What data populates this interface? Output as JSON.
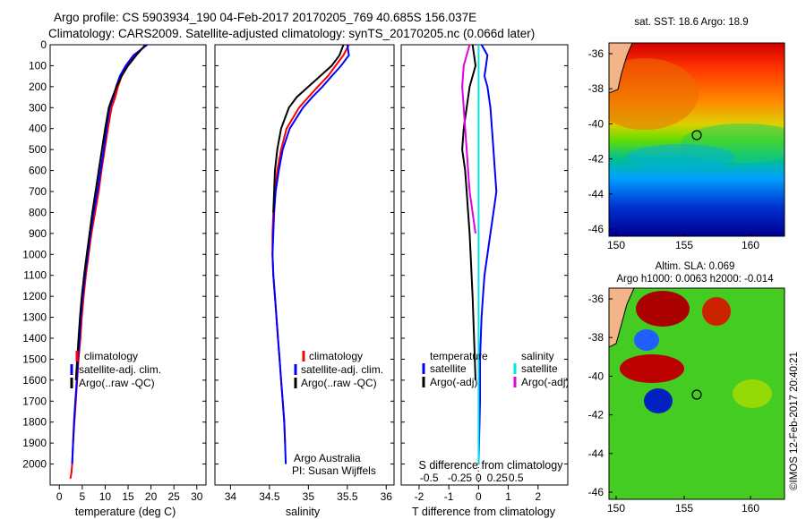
{
  "header": {
    "line1": "Argo profile: CS 5903934_190 04-Feb-2017 20170205_769 40.685S 156.037E",
    "line2": "Climatology: CARS2009. Satellite-adjusted climatology: synTS_20170205.nc (0.066d later)"
  },
  "colors": {
    "climatology": "#ff0000",
    "satellite": "#0000ff",
    "argo": "#000000",
    "sal_satellite": "#00e5e5",
    "sal_argo": "#e000e0"
  },
  "chart_data": [
    {
      "type": "line",
      "id": "temperature",
      "xlabel": "temperature (deg C)",
      "ylabel": "",
      "xlim": [
        -2,
        32
      ],
      "ylim": [
        2100,
        0
      ],
      "xticks": [
        0,
        5,
        10,
        15,
        20,
        25,
        30
      ],
      "yticks": [
        0,
        100,
        200,
        300,
        400,
        500,
        600,
        700,
        800,
        900,
        1000,
        1100,
        1200,
        1300,
        1400,
        1500,
        1600,
        1700,
        1800,
        1900,
        2000
      ],
      "legend": [
        "climatology",
        "satellite-adj. clim.",
        "Argo(..raw -QC)"
      ],
      "legend_position": "lower-right",
      "series": [
        {
          "name": "climatology",
          "color_key": "climatology",
          "x": [
            19.0,
            16.5,
            14.6,
            13.6,
            12.8,
            12.2,
            11.4,
            10.6,
            9.9,
            9.2,
            8.6,
            7.8,
            7.0,
            6.4,
            5.8,
            5.3,
            4.9,
            4.6,
            4.2,
            3.9,
            3.6,
            3.3,
            3.0,
            2.8,
            2.6,
            2.4
          ],
          "y": [
            0,
            50,
            100,
            150,
            200,
            250,
            300,
            400,
            500,
            600,
            700,
            800,
            900,
            1000,
            1100,
            1200,
            1300,
            1400,
            1500,
            1600,
            1700,
            1800,
            1900,
            2000,
            2050,
            2070
          ]
        },
        {
          "name": "satellite-adj. clim.",
          "color_key": "satellite",
          "x": [
            19.2,
            16.2,
            14.5,
            13.2,
            12.4,
            11.8,
            11.0,
            10.3,
            9.7,
            9.0,
            8.3,
            7.5,
            6.8,
            6.2,
            5.6,
            5.1,
            4.7,
            4.4,
            4.1,
            3.8,
            3.5,
            3.2,
            3.0,
            2.8
          ],
          "y": [
            0,
            50,
            100,
            150,
            200,
            250,
            300,
            400,
            500,
            600,
            700,
            800,
            900,
            1000,
            1100,
            1200,
            1300,
            1400,
            1500,
            1600,
            1700,
            1800,
            1900,
            2000
          ]
        },
        {
          "name": "Argo(..raw -QC)",
          "color_key": "argo",
          "x": [
            18.8,
            16.8,
            15.0,
            13.6,
            12.5,
            11.6,
            10.8,
            10.0,
            9.3,
            8.6,
            7.9,
            7.2,
            6.6,
            6.0,
            5.4,
            4.9,
            4.5,
            4.2,
            3.9,
            3.6
          ],
          "y": [
            0,
            50,
            100,
            150,
            200,
            250,
            300,
            400,
            500,
            600,
            700,
            800,
            900,
            1000,
            1100,
            1200,
            1300,
            1400,
            1500,
            1600
          ]
        }
      ]
    },
    {
      "type": "line",
      "id": "salinity",
      "xlabel": "salinity",
      "ylabel": "",
      "xlim": [
        33.8,
        36.1
      ],
      "ylim": [
        2100,
        0
      ],
      "xticks": [
        34,
        34.5,
        35,
        35.5,
        36
      ],
      "legend": [
        "climatology",
        "satellite-adj. clim.",
        "Argo(..raw -QC)"
      ],
      "legend_position": "lower-right",
      "annotation": [
        "Argo Australia",
        "PI: Susan Wijffels"
      ],
      "series": [
        {
          "name": "climatology",
          "color_key": "climatology",
          "x": [
            35.52,
            35.45,
            35.35,
            35.25,
            35.12,
            35.0,
            34.88,
            34.72,
            34.65,
            34.6,
            34.57,
            34.55,
            34.54,
            34.54,
            34.55,
            34.57,
            34.59,
            34.61,
            34.63,
            34.65,
            34.67,
            34.69,
            34.7
          ],
          "y": [
            0,
            50,
            100,
            150,
            200,
            250,
            300,
            400,
            500,
            600,
            700,
            800,
            900,
            1000,
            1100,
            1200,
            1300,
            1400,
            1500,
            1600,
            1700,
            1800,
            1900
          ]
        },
        {
          "name": "satellite-adj. clim.",
          "color_key": "satellite",
          "x": [
            35.5,
            35.52,
            35.42,
            35.3,
            35.18,
            35.05,
            34.93,
            34.76,
            34.67,
            34.62,
            34.58,
            34.56,
            34.55,
            34.54,
            34.55,
            34.57,
            34.59,
            34.61,
            34.63,
            34.65,
            34.67,
            34.69,
            34.7,
            34.71
          ],
          "y": [
            0,
            50,
            100,
            150,
            200,
            250,
            300,
            400,
            500,
            600,
            700,
            800,
            900,
            1000,
            1100,
            1200,
            1300,
            1400,
            1500,
            1600,
            1700,
            1800,
            1900,
            2000
          ]
        },
        {
          "name": "Argo(..raw -QC)",
          "color_key": "argo",
          "x": [
            35.45,
            35.4,
            35.3,
            35.15,
            35.0,
            34.85,
            34.75,
            34.65,
            34.6,
            34.57,
            34.56,
            34.55
          ],
          "y": [
            0,
            50,
            100,
            150,
            200,
            250,
            300,
            400,
            500,
            600,
            700,
            800
          ]
        }
      ]
    },
    {
      "type": "line",
      "id": "difference",
      "xlabel": "T difference from climatology",
      "x2label": "S difference from climatology",
      "ylabel": "",
      "xlim": [
        -2.6,
        3.0
      ],
      "ylim": [
        2100,
        0
      ],
      "xticks": [
        -2,
        -1,
        0,
        1,
        2
      ],
      "x2ticks": [
        "-0.5",
        "-0.25",
        "0",
        "0.25",
        "0.5"
      ],
      "legend": [
        "temperature",
        "satellite",
        "Argo(-adj)",
        "salinity",
        "satellite",
        "Argo(-adj)"
      ],
      "legend_position": "lower-center",
      "series": [
        {
          "name": "temperature satellite",
          "color_key": "satellite",
          "x": [
            0.1,
            0.3,
            0.25,
            0.2,
            0.3,
            0.4,
            0.45,
            0.5,
            0.55,
            0.6,
            0.5,
            0.4,
            0.3,
            0.2,
            0.15,
            0.1,
            0.05,
            0.05,
            0.0
          ],
          "y": [
            0,
            50,
            100,
            150,
            200,
            300,
            400,
            500,
            600,
            700,
            800,
            900,
            1000,
            1100,
            1200,
            1300,
            1500,
            1700,
            2000
          ]
        },
        {
          "name": "temperature Argo(-adj)",
          "color_key": "argo",
          "x": [
            -0.2,
            -0.1,
            -0.3,
            -0.4,
            -0.5,
            -0.55,
            -0.45,
            -0.4,
            -0.35,
            -0.3,
            -0.2,
            -0.1
          ],
          "y": [
            0,
            100,
            200,
            300,
            400,
            500,
            600,
            700,
            800,
            900,
            1200,
            1600
          ]
        },
        {
          "name": "salinity satellite",
          "color_key": "sal_satellite",
          "x": [
            0.0,
            0.0,
            0.0,
            0.0,
            0.0,
            0.0,
            0.0,
            0.0
          ],
          "y": [
            0,
            200,
            400,
            800,
            1200,
            1600,
            1900,
            2000
          ]
        },
        {
          "name": "salinity Argo(-adj)",
          "color_key": "sal_argo",
          "x": [
            -0.3,
            -0.5,
            -0.55,
            -0.5,
            -0.45,
            -0.4,
            -0.35,
            -0.3,
            -0.2,
            -0.1
          ],
          "y": [
            0,
            100,
            200,
            300,
            400,
            500,
            600,
            700,
            800,
            900
          ]
        }
      ]
    }
  ],
  "maps": {
    "sst": {
      "title": "sat. SST: 18.6 Argo: 18.9",
      "yticks": [
        "-36",
        "-38",
        "-40",
        "-42",
        "-44",
        "-46"
      ],
      "xticks": [
        "150",
        "155",
        "160"
      ]
    },
    "sla": {
      "title_line1": "Altim. SLA: 0.069",
      "title_line2": "Argo h1000: 0.0063 h2000: -0.014",
      "yticks": [
        "-36",
        "-38",
        "-40",
        "-42",
        "-44",
        "-46"
      ],
      "xticks": [
        "150",
        "155",
        "160"
      ]
    }
  },
  "watermark": "©IMOS 12-Feb-2017 20:40:21"
}
